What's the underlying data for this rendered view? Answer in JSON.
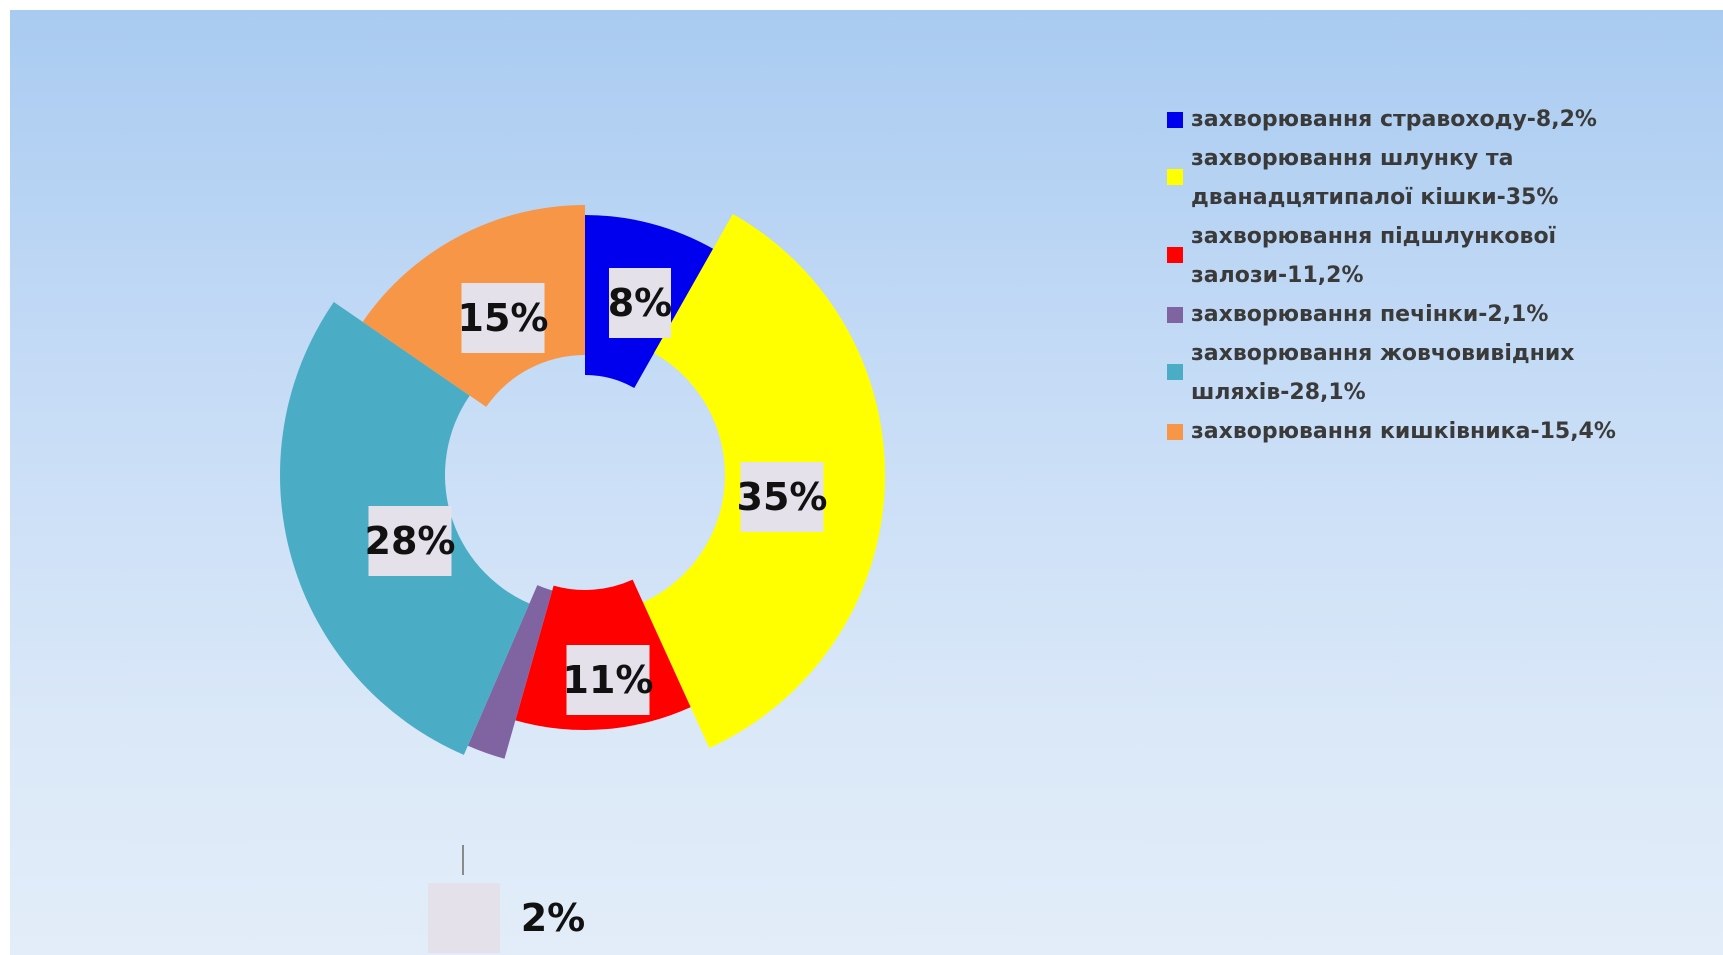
{
  "chart_data": {
    "type": "pie",
    "exploded": true,
    "categories": [
      "захворювання стравоходу-8,2%",
      "захворювання шлунку та дванадцятипалої кішки-35%",
      "захворювання підшлункової залози-11,2%",
      "захворювання печінки-2,1%",
      "захворювання жовчовивідних шляхів-28,1%",
      "захворювання кишківника-15,4%"
    ],
    "values": [
      8.2,
      35,
      11.2,
      2.1,
      28.1,
      15.4
    ],
    "data_labels": [
      "8%",
      "35%",
      "11%",
      "2%",
      "28%",
      "15%"
    ],
    "colors": [
      "#0000ee",
      "#ffff00",
      "#ff0000",
      "#8064a2",
      "#4bacc6",
      "#f79646"
    ],
    "legend_placement": "right",
    "title": ""
  }
}
